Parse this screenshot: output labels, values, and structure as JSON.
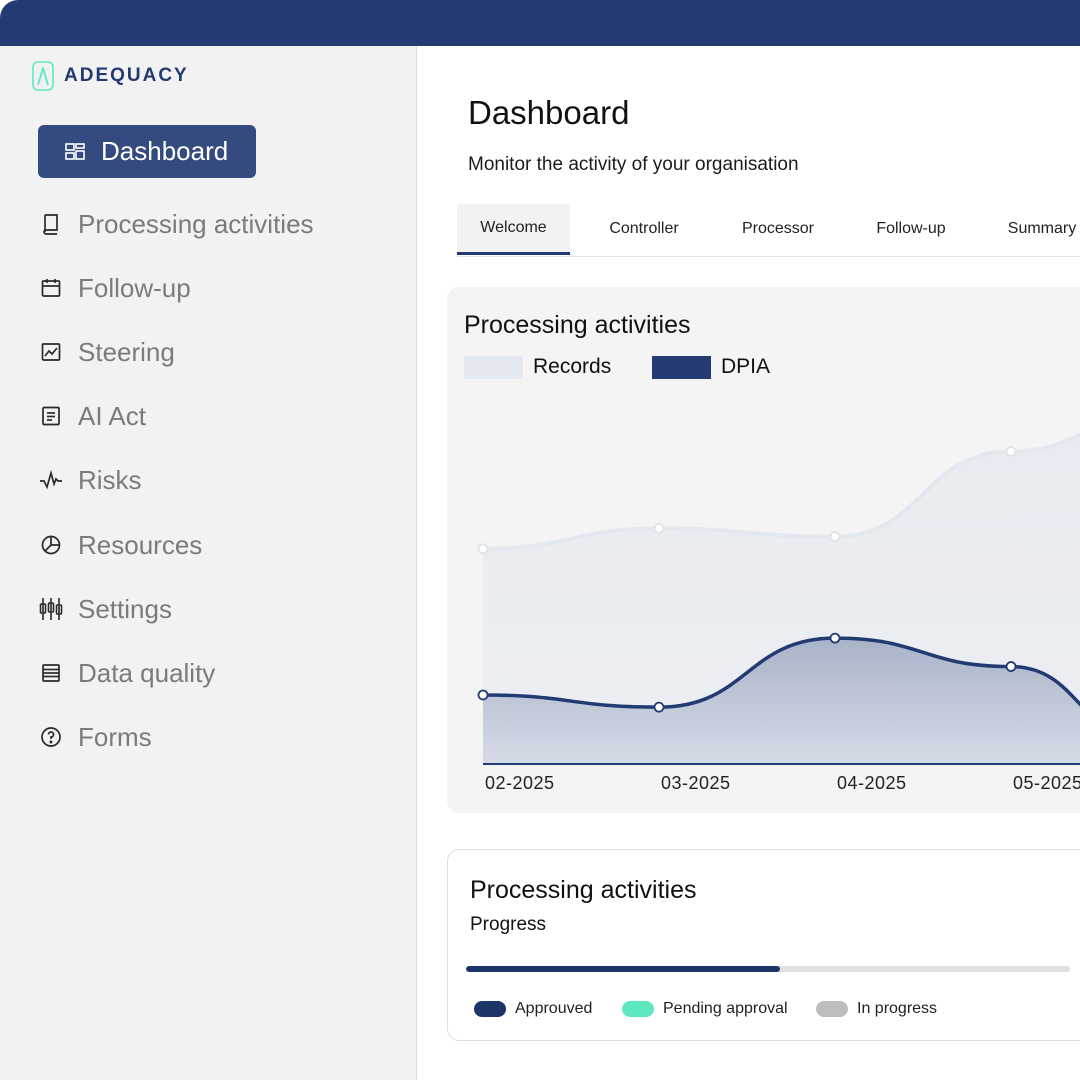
{
  "brand": {
    "name": "ADEQUACY",
    "color": "#233b73",
    "mark_color": "#5de8c2"
  },
  "sidebar": {
    "items": [
      {
        "label": "Dashboard",
        "icon": "dashboard-icon",
        "active": true
      },
      {
        "label": "Processing activities",
        "icon": "book-icon"
      },
      {
        "label": "Follow-up",
        "icon": "calendar-icon"
      },
      {
        "label": "Steering",
        "icon": "line-chart-icon"
      },
      {
        "label": "AI Act",
        "icon": "document-icon"
      },
      {
        "label": "Risks",
        "icon": "pulse-icon"
      },
      {
        "label": "Resources",
        "icon": "pie-icon"
      },
      {
        "label": "Settings",
        "icon": "sliders-icon"
      },
      {
        "label": "Data quality",
        "icon": "database-icon"
      },
      {
        "label": "Forms",
        "icon": "help-circle-icon"
      }
    ]
  },
  "header": {
    "title": "Dashboard",
    "subtitle": "Monitor the activity of your organisation"
  },
  "tabs": [
    {
      "label": "Welcome",
      "active": true
    },
    {
      "label": "Controller"
    },
    {
      "label": "Processor"
    },
    {
      "label": "Follow-up"
    },
    {
      "label": "Summary"
    }
  ],
  "chart_card": {
    "title": "Processing activities"
  },
  "chart_data": {
    "type": "area",
    "title": "Processing activities",
    "x": [
      "02-2025",
      "03-2025",
      "04-2025",
      "05-2025"
    ],
    "legend": {
      "placement": "top-left"
    },
    "grid": false,
    "series": [
      {
        "name": "Records",
        "color": "#e4e8ef",
        "values": [
          0.53,
          0.58,
          0.56,
          0.77
        ]
      },
      {
        "name": "DPIA",
        "color": "#233b73",
        "values": [
          0.17,
          0.14,
          0.31,
          0.24
        ]
      }
    ]
  },
  "progress_card": {
    "title": "Processing activities",
    "subtitle": "Progress",
    "approved_fraction": 0.52,
    "legend": [
      {
        "label": "Approuved",
        "color": "#1d3468"
      },
      {
        "label": "Pending approval",
        "color": "#5de8c2"
      },
      {
        "label": "In progress",
        "color": "#bdbdbd"
      }
    ]
  }
}
